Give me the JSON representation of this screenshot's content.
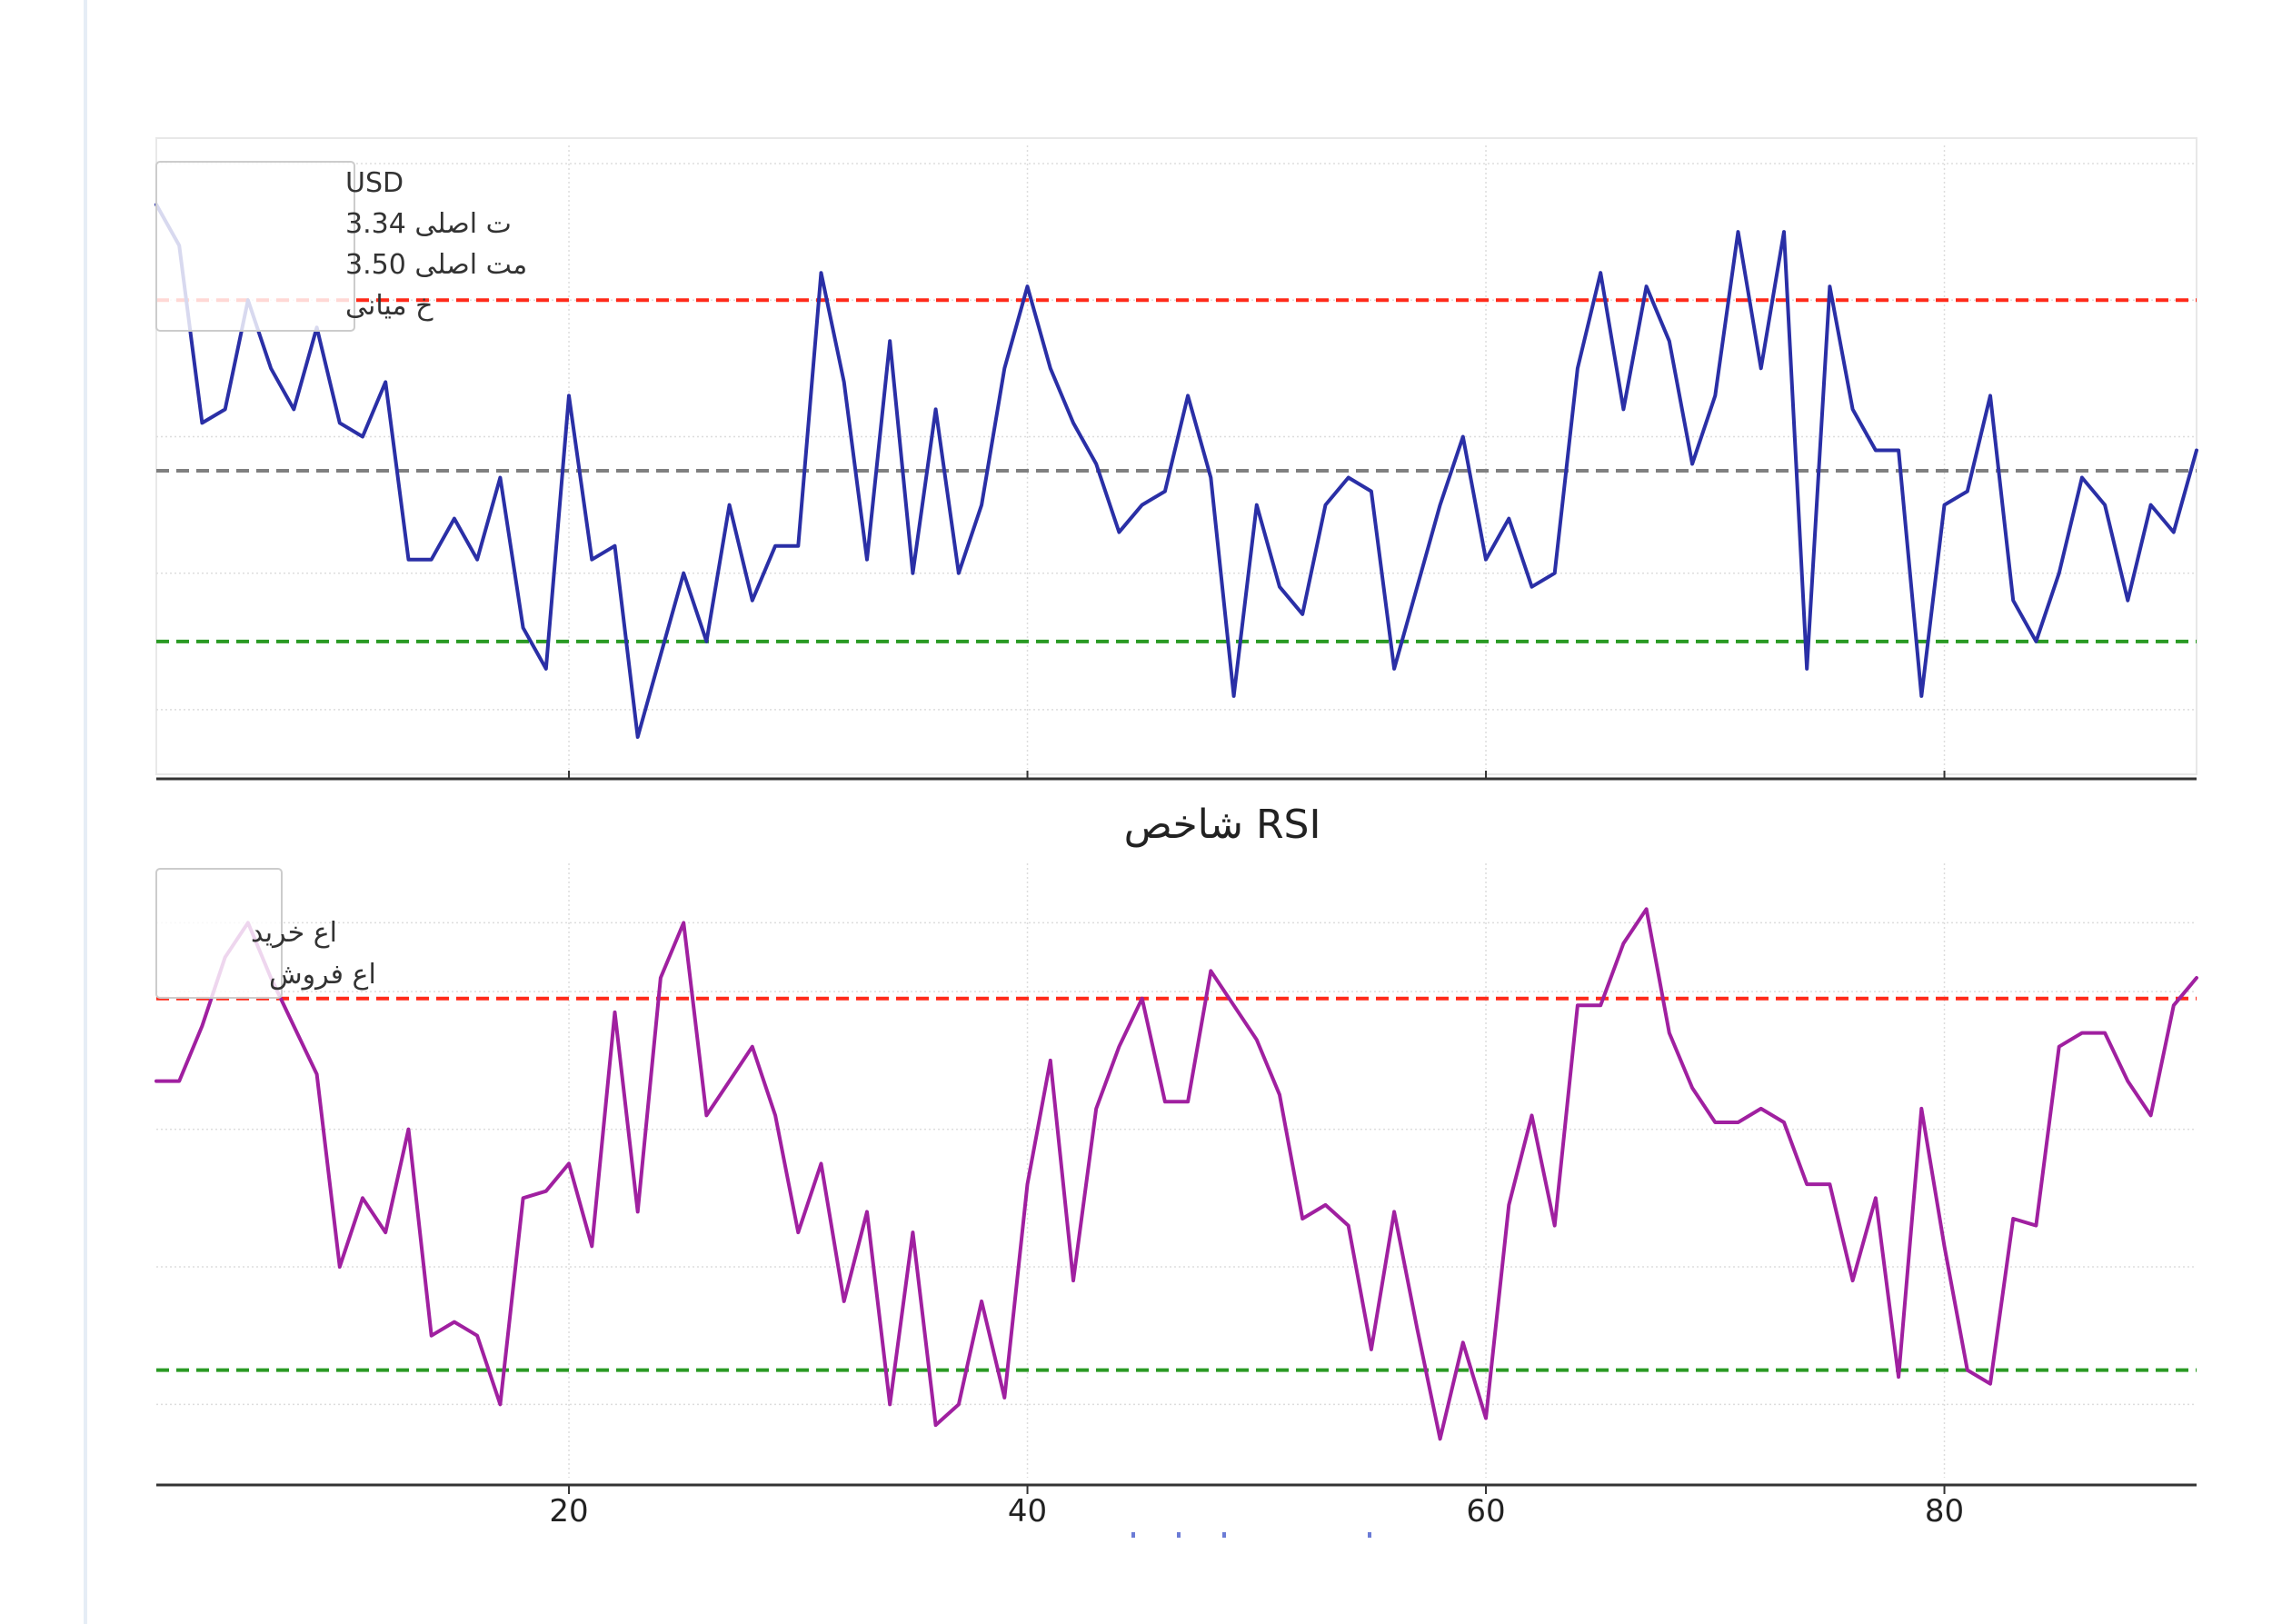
{
  "chart_data": [
    {
      "type": "line",
      "title": "",
      "xlabel": "",
      "ylabel": "",
      "xlim": [
        2,
        91
      ],
      "ylim": [
        3.17,
        3.6
      ],
      "grid": true,
      "legend_location": "upper-left",
      "legend_entries": [
        "USD",
        "ت اصلی 3.34",
        "مت اصلی 3.50",
        "خ میانی"
      ],
      "reference_lines": [
        {
          "name": "upper",
          "value": 3.5,
          "color": "#ff2a1a"
        },
        {
          "name": "middle",
          "value": 3.375,
          "color": "#808080"
        },
        {
          "name": "lower",
          "value": 3.25,
          "color": "#2a9a24"
        }
      ],
      "series": [
        {
          "name": "USD",
          "color": "#2a2fa6",
          "x": [
            2,
            3,
            4,
            5,
            6,
            7,
            8,
            9,
            10,
            11,
            12,
            13,
            14,
            15,
            16,
            17,
            18,
            19,
            20,
            21,
            22,
            23,
            24,
            25,
            26,
            27,
            28,
            29,
            30,
            31,
            32,
            33,
            34,
            35,
            36,
            37,
            38,
            39,
            40,
            41,
            42,
            43,
            44,
            45,
            46,
            47,
            48,
            49,
            50,
            51,
            52,
            53,
            54,
            55,
            56,
            57,
            58,
            59,
            60,
            61,
            62,
            63,
            64,
            65,
            66,
            67,
            68,
            69,
            70,
            71,
            72,
            73,
            74,
            75,
            76,
            77,
            78,
            79,
            80,
            81,
            82,
            83,
            84,
            85,
            86,
            87,
            88,
            89,
            90,
            91
          ],
          "values": [
            3.57,
            3.54,
            3.41,
            3.42,
            3.5,
            3.45,
            3.42,
            3.48,
            3.41,
            3.4,
            3.44,
            3.31,
            3.31,
            3.34,
            3.31,
            3.37,
            3.26,
            3.23,
            3.43,
            3.31,
            3.32,
            3.18,
            3.24,
            3.3,
            3.25,
            3.35,
            3.28,
            3.32,
            3.32,
            3.52,
            3.44,
            3.31,
            3.47,
            3.3,
            3.42,
            3.3,
            3.35,
            3.45,
            3.51,
            3.45,
            3.41,
            3.38,
            3.33,
            3.35,
            3.36,
            3.43,
            3.37,
            3.21,
            3.35,
            3.29,
            3.27,
            3.35,
            3.37,
            3.36,
            3.23,
            3.29,
            3.35,
            3.4,
            3.31,
            3.34,
            3.29,
            3.3,
            3.45,
            3.52,
            3.42,
            3.51,
            3.47,
            3.38,
            3.43,
            3.55,
            3.45,
            3.55,
            3.23,
            3.51,
            3.42,
            3.39,
            3.39,
            3.21,
            3.35,
            3.36,
            3.43,
            3.28,
            3.25,
            3.3,
            3.37,
            3.35,
            3.28,
            3.35,
            3.33,
            3.39
          ]
        }
      ]
    },
    {
      "type": "line",
      "title": "شاخص RSI",
      "xlabel": "",
      "ylabel": "",
      "xlim": [
        2,
        91
      ],
      "ylim": [
        12,
        96
      ],
      "grid": true,
      "x_ticks": [
        20,
        40,
        60,
        80
      ],
      "legend_location": "upper-left",
      "legend_entries": [
        "اع خرید",
        "اع فروش"
      ],
      "reference_lines": [
        {
          "name": "overbought",
          "value": 79,
          "color": "#ff2a1a"
        },
        {
          "name": "oversold",
          "value": 25,
          "color": "#2a9a24"
        }
      ],
      "series": [
        {
          "name": "RSI",
          "color": "#a020a0",
          "x": [
            2,
            3,
            4,
            5,
            6,
            7,
            8,
            9,
            10,
            11,
            12,
            13,
            14,
            15,
            16,
            17,
            18,
            19,
            20,
            21,
            22,
            23,
            24,
            25,
            26,
            27,
            28,
            29,
            30,
            31,
            32,
            33,
            34,
            35,
            36,
            37,
            38,
            39,
            40,
            41,
            42,
            43,
            44,
            45,
            46,
            47,
            48,
            49,
            50,
            51,
            52,
            53,
            54,
            55,
            56,
            57,
            58,
            59,
            60,
            61,
            62,
            63,
            64,
            65,
            66,
            67,
            68,
            69,
            70,
            71,
            72,
            73,
            74,
            75,
            76,
            77,
            78,
            79,
            80,
            81,
            82,
            83,
            84,
            85,
            86,
            87,
            88,
            89,
            90,
            91
          ],
          "values": [
            67,
            67,
            75,
            85,
            90,
            82,
            75,
            68,
            40,
            50,
            45,
            60,
            30,
            32,
            30,
            20,
            50,
            51,
            55,
            43,
            77,
            48,
            82,
            90,
            62,
            67,
            72,
            62,
            45,
            55,
            35,
            48,
            20,
            45,
            17,
            20,
            35,
            21,
            52,
            70,
            38,
            63,
            72,
            79,
            64,
            64,
            83,
            78,
            73,
            65,
            47,
            49,
            46,
            28,
            48,
            31,
            15,
            29,
            18,
            49,
            62,
            46,
            78,
            78,
            87,
            92,
            74,
            66,
            61,
            61,
            63,
            61,
            52,
            52,
            38,
            50,
            24,
            63,
            43,
            25,
            23,
            47,
            46,
            72,
            74,
            74,
            67,
            62,
            78,
            82
          ]
        }
      ]
    }
  ]
}
